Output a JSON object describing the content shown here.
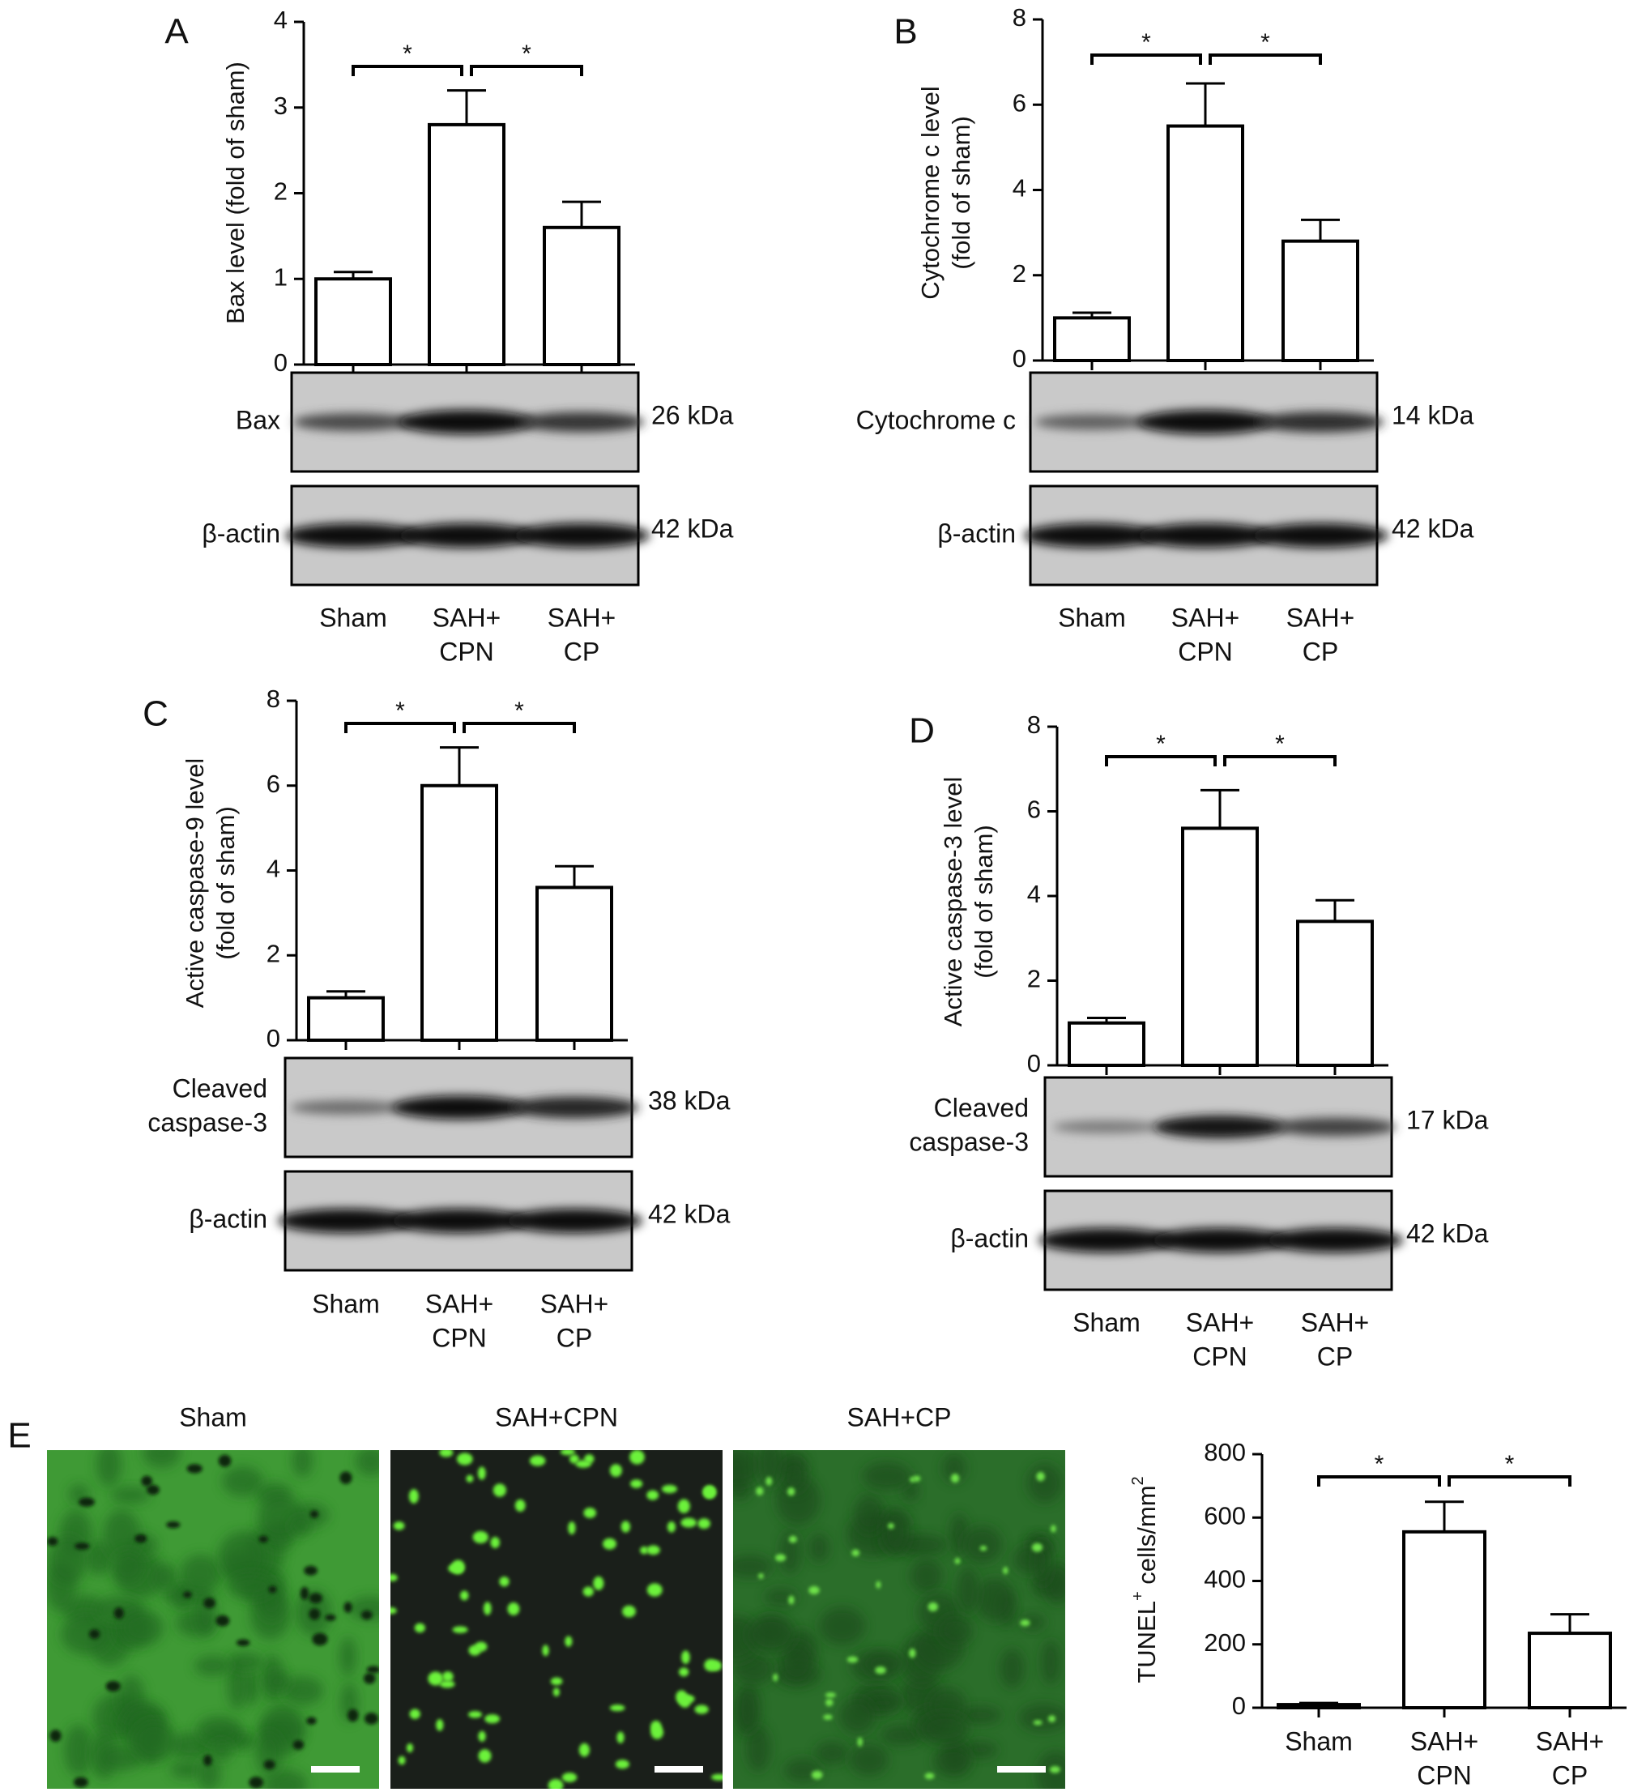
{
  "chart_data": [
    {
      "panel": "A",
      "type": "bar",
      "categories": [
        "Sham",
        "SAH+ CPN",
        "SAH+ CP"
      ],
      "values": [
        1.0,
        2.8,
        1.6
      ],
      "errors": [
        0.08,
        0.4,
        0.3
      ],
      "ylabel": "Bax level (fold of sham)",
      "yticks": [
        0,
        1,
        2,
        3,
        4
      ],
      "ylim": [
        0,
        4
      ],
      "significance": [
        "*",
        "*"
      ],
      "blots": [
        {
          "label": "Bax",
          "kda": "26 kDa",
          "intensities": [
            0.55,
            1.0,
            0.7
          ]
        },
        {
          "label": "β-actin",
          "kda": "42 kDa",
          "intensities": [
            1.0,
            1.0,
            1.0
          ]
        }
      ],
      "cat_lines": [
        [
          "Sham"
        ],
        [
          "SAH+",
          "CPN"
        ],
        [
          "SAH+",
          "CP"
        ]
      ]
    },
    {
      "panel": "B",
      "type": "bar",
      "categories": [
        "Sham",
        "SAH+ CPN",
        "SAH+ CP"
      ],
      "values": [
        1.0,
        5.5,
        2.8
      ],
      "errors": [
        0.12,
        1.0,
        0.5
      ],
      "ylabel": "Cytochrome c level (fold of sham)",
      "ylabel_lines": [
        "Cytochrome c level",
        "(fold of sham)"
      ],
      "yticks": [
        0,
        2,
        4,
        6,
        8
      ],
      "ylim": [
        0,
        8
      ],
      "significance": [
        "*",
        "*"
      ],
      "blots": [
        {
          "label": "Cytochrome c",
          "kda": "14 kDa",
          "intensities": [
            0.4,
            1.0,
            0.75
          ]
        },
        {
          "label": "β-actin",
          "kda": "42 kDa",
          "intensities": [
            1.0,
            1.0,
            1.0
          ]
        }
      ],
      "cat_lines": [
        [
          "Sham"
        ],
        [
          "SAH+",
          "CPN"
        ],
        [
          "SAH+",
          "CP"
        ]
      ]
    },
    {
      "panel": "C",
      "type": "bar",
      "categories": [
        "Sham",
        "SAH+ CPN",
        "SAH+ CP"
      ],
      "values": [
        1.0,
        6.0,
        3.6
      ],
      "errors": [
        0.15,
        0.9,
        0.5
      ],
      "ylabel": "Active caspase-9 level (fold of sham)",
      "ylabel_lines": [
        "Active caspase-9 level",
        "(fold of sham)"
      ],
      "yticks": [
        0,
        2,
        4,
        6,
        8
      ],
      "ylim": [
        0,
        8
      ],
      "significance": [
        "*",
        "*"
      ],
      "blots": [
        {
          "label_lines": [
            "Cleaved",
            "caspase-3"
          ],
          "kda": "38 kDa",
          "intensities": [
            0.3,
            0.95,
            0.8
          ]
        },
        {
          "label": "β-actin",
          "kda": "42 kDa",
          "intensities": [
            1.0,
            1.0,
            1.0
          ]
        }
      ],
      "cat_lines": [
        [
          "Sham"
        ],
        [
          "SAH+",
          "CPN"
        ],
        [
          "SAH+",
          "CP"
        ]
      ]
    },
    {
      "panel": "D",
      "type": "bar",
      "categories": [
        "Sham",
        "SAH+ CPN",
        "SAH+ CP"
      ],
      "values": [
        1.0,
        5.6,
        3.4
      ],
      "errors": [
        0.12,
        0.9,
        0.5
      ],
      "ylabel": "Active caspase-3 level (fold of sham)",
      "ylabel_lines": [
        "Active caspase-3 level",
        "(fold of sham)"
      ],
      "yticks": [
        0,
        2,
        4,
        6,
        8
      ],
      "ylim": [
        0,
        8
      ],
      "significance": [
        "*",
        "*"
      ],
      "blots": [
        {
          "label_lines": [
            "Cleaved",
            "caspase-3"
          ],
          "kda": "17 kDa",
          "intensities": [
            0.2,
            0.9,
            0.6
          ]
        },
        {
          "label": "β-actin",
          "kda": "42 kDa",
          "intensities": [
            1.0,
            1.0,
            1.0
          ]
        }
      ],
      "cat_lines": [
        [
          "Sham"
        ],
        [
          "SAH+",
          "CPN"
        ],
        [
          "SAH+",
          "CP"
        ]
      ]
    },
    {
      "panel": "E",
      "type": "bar",
      "categories": [
        "Sham",
        "SAH+ CPN",
        "SAH+ CP"
      ],
      "values": [
        10,
        555,
        235
      ],
      "errors": [
        5,
        95,
        60
      ],
      "ylabel": "TUNEL+ cells/mm2",
      "yticks": [
        0,
        200,
        400,
        600,
        800
      ],
      "ylim": [
        0,
        800
      ],
      "significance": [
        "*",
        "*"
      ],
      "micrographs": [
        "Sham",
        "SAH+CPN",
        "SAH+CP"
      ],
      "cat_lines": [
        [
          "Sham"
        ],
        [
          "SAH+",
          "CPN"
        ],
        [
          "SAH+",
          "CP"
        ]
      ]
    }
  ],
  "colors": {
    "bar_fill": "#ffffff",
    "stroke": "#000000",
    "blot_background": "#c9c9c9",
    "micrograph_green": "#2f8f2f",
    "micrograph_dark": "#1a1f1a"
  }
}
